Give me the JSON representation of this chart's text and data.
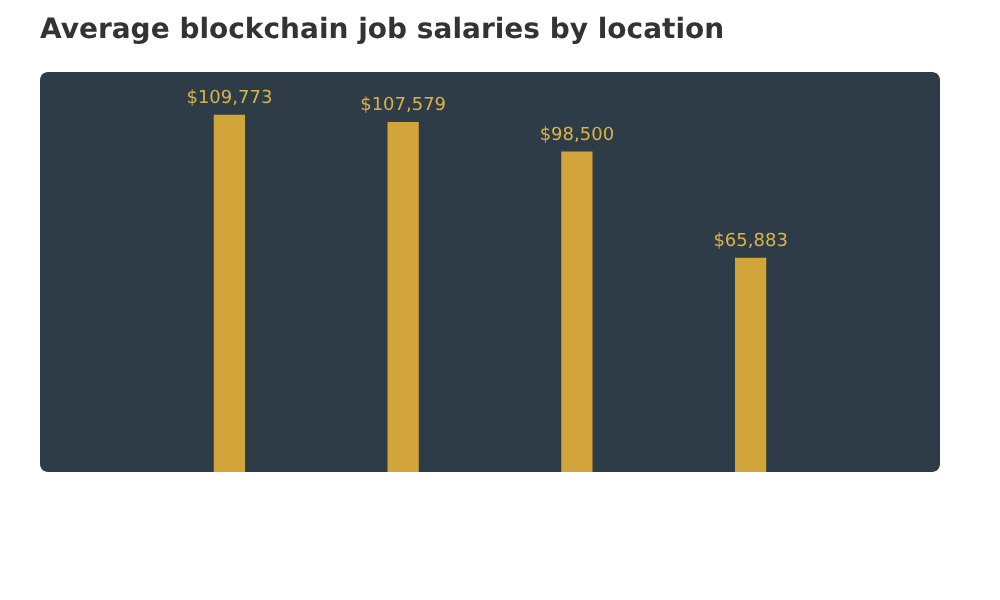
{
  "chart_data": {
    "type": "bar",
    "title": "Average blockchain job salaries by location",
    "categories": [
      null,
      null,
      null,
      null
    ],
    "values": [
      109773,
      107579,
      98500,
      65883
    ],
    "value_labels": [
      "$109,773",
      "$107,579",
      "$98,500",
      "$65,883"
    ],
    "color": "#d2a53a"
  }
}
